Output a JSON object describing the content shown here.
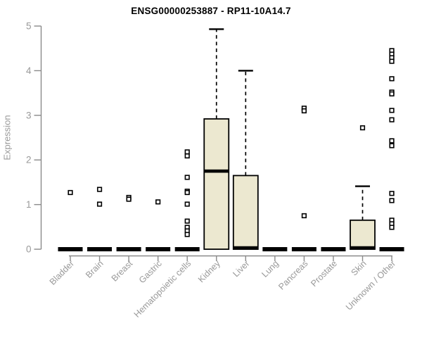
{
  "chart_data": {
    "type": "boxplot",
    "title": "ENSG00000253887 - RP11-10A14.7",
    "ylabel": "Expression",
    "xlabel": "",
    "ylim": [
      0,
      5
    ],
    "yticks": [
      0,
      1,
      2,
      3,
      4,
      5
    ],
    "grid": false,
    "legend": "none",
    "categories": [
      "Bladder",
      "Brain",
      "Breast",
      "Gastric",
      "Hematopoietic cells",
      "Kidney",
      "Liver",
      "Lung",
      "Pancreas",
      "Prostate",
      "Skin",
      "Unknown / Other"
    ],
    "series": [
      {
        "name": "Bladder",
        "q1": 0,
        "median": 0,
        "q3": 0,
        "whisker_low": 0,
        "whisker_high": 0,
        "outliers": [
          1.27
        ]
      },
      {
        "name": "Brain",
        "q1": 0,
        "median": 0,
        "q3": 0,
        "whisker_low": 0,
        "whisker_high": 0,
        "outliers": [
          1.34,
          1.01
        ]
      },
      {
        "name": "Breast",
        "q1": 0,
        "median": 0,
        "q3": 0,
        "whisker_low": 0,
        "whisker_high": 0,
        "outliers": [
          1.16,
          1.12
        ]
      },
      {
        "name": "Gastric",
        "q1": 0,
        "median": 0,
        "q3": 0,
        "whisker_low": 0,
        "whisker_high": 0,
        "outliers": [
          1.06
        ]
      },
      {
        "name": "Hematopoietic cells",
        "q1": 0,
        "median": 0,
        "q3": 0,
        "whisker_low": 0,
        "whisker_high": 0,
        "outliers": [
          2.18,
          2.09,
          1.61,
          1.3,
          1.27,
          1.01,
          0.63,
          0.49,
          0.41,
          0.33
        ]
      },
      {
        "name": "Kidney",
        "q1": 0,
        "median": 1.75,
        "q3": 2.92,
        "whisker_low": 0,
        "whisker_high": 4.93,
        "outliers": []
      },
      {
        "name": "Liver",
        "q1": 0,
        "median": 0,
        "q3": 1.65,
        "whisker_low": 0,
        "whisker_high": 4.0,
        "outliers": []
      },
      {
        "name": "Lung",
        "q1": 0,
        "median": 0,
        "q3": 0,
        "whisker_low": 0,
        "whisker_high": 0,
        "outliers": []
      },
      {
        "name": "Pancreas",
        "q1": 0,
        "median": 0,
        "q3": 0,
        "whisker_low": 0,
        "whisker_high": 0,
        "outliers": [
          3.16,
          3.1,
          0.75
        ]
      },
      {
        "name": "Prostate",
        "q1": 0,
        "median": 0,
        "q3": 0,
        "whisker_low": 0,
        "whisker_high": 0,
        "outliers": []
      },
      {
        "name": "Skin",
        "q1": 0,
        "median": 0,
        "q3": 0.65,
        "whisker_low": 0,
        "whisker_high": 1.41,
        "outliers": [
          2.72
        ]
      },
      {
        "name": "Unknown / Other",
        "q1": 0,
        "median": 0,
        "q3": 0,
        "whisker_low": 0,
        "whisker_high": 0,
        "outliers": [
          4.45,
          4.37,
          4.29,
          4.21,
          3.82,
          3.52,
          3.48,
          3.11,
          2.9,
          2.43,
          2.32,
          1.25,
          1.09,
          0.65,
          0.57,
          0.49
        ]
      }
    ],
    "colors": {
      "box_fill": "#ece8d0",
      "box_stroke": "#000000",
      "median": "#000000",
      "outlier_fill": "#ffffff",
      "outlier_stroke": "#000000",
      "axis": "#8a8a8a",
      "tick_label": "#999999",
      "title": "#000000",
      "background": "#ffffff"
    }
  }
}
